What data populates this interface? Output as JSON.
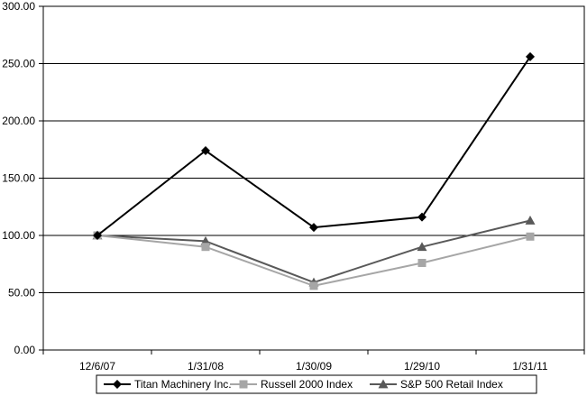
{
  "chart_data": {
    "type": "line",
    "title": "",
    "xlabel": "",
    "ylabel": "",
    "categories": [
      "12/6/07",
      "1/31/08",
      "1/30/09",
      "1/29/10",
      "1/31/11"
    ],
    "ylim": [
      0,
      300
    ],
    "y_ticks": [
      "0.00",
      "50.00",
      "100.00",
      "150.00",
      "200.00",
      "250.00",
      "300.00"
    ],
    "y_tick_values": [
      0,
      50,
      100,
      150,
      200,
      250,
      300
    ],
    "grid": "horizontal",
    "legend_position": "bottom",
    "series": [
      {
        "name": "Titan Machinery Inc.",
        "values": [
          100,
          174,
          107,
          116,
          256
        ],
        "color": "#000000",
        "marker": "diamond"
      },
      {
        "name": "Russell 2000 Index",
        "values": [
          100,
          90,
          56,
          76,
          99
        ],
        "color": "#a6a6a6",
        "marker": "square"
      },
      {
        "name": "S&P 500 Retail Index",
        "values": [
          100,
          95,
          59,
          90,
          113
        ],
        "color": "#595959",
        "marker": "triangle"
      }
    ]
  }
}
